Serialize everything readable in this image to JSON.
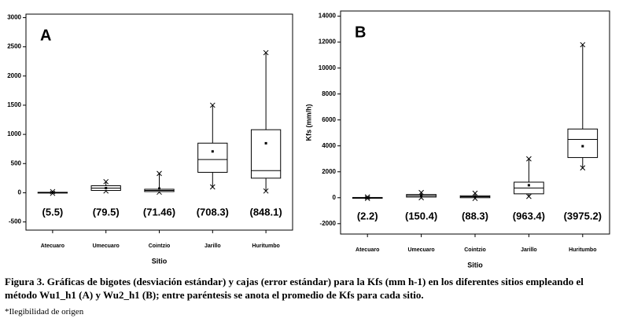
{
  "chart_data": [
    {
      "type": "box",
      "panel_label": "A",
      "x_label": "Sitio",
      "categories": [
        "Atecuaro",
        "Umecuaro",
        "Cointzio",
        "Jarillo",
        "Huritumbo"
      ],
      "min": [
        -10,
        30,
        10,
        100,
        30
      ],
      "q1": [
        0,
        40,
        20,
        350,
        250
      ],
      "median": [
        3,
        80,
        40,
        570,
        380
      ],
      "q3": [
        8,
        120,
        60,
        850,
        1080
      ],
      "max": [
        20,
        190,
        330,
        1500,
        2400
      ],
      "means": [
        5.5,
        79.5,
        71.46,
        708.3,
        848.1
      ],
      "value_labels": [
        "(5.5)",
        "(79.5)",
        "(71.46)",
        "(708.3)",
        "(848.1)"
      ],
      "ylim": [
        -640,
        3060
      ],
      "yticks": [
        -500,
        0,
        500,
        1000,
        1500,
        2000,
        2500,
        3000
      ],
      "color": "#000000"
    },
    {
      "type": "box",
      "panel_label": "B",
      "x_label": "Sitio",
      "y_label": "Kfs (mm/h)",
      "categories": [
        "Atecuaro",
        "Umecuaro",
        "Cointzio",
        "Jarillo",
        "Huritumbo"
      ],
      "min": [
        -50,
        0,
        -50,
        100,
        2300
      ],
      "q1": [
        -20,
        50,
        0,
        300,
        3100
      ],
      "median": [
        0,
        150,
        80,
        750,
        4500
      ],
      "q3": [
        20,
        250,
        150,
        1200,
        5300
      ],
      "max": [
        60,
        400,
        350,
        3000,
        11800
      ],
      "means": [
        2.2,
        150.4,
        88.3,
        963.4,
        3975.2
      ],
      "value_labels": [
        "(2.2)",
        "(150.4)",
        "(88.3)",
        "(963.4)",
        "(3975.2)"
      ],
      "ylim": [
        -2800,
        14400
      ],
      "yticks": [
        -2000,
        0,
        2000,
        4000,
        6000,
        8000,
        10000,
        12000,
        14000
      ],
      "color": "#000000"
    }
  ],
  "caption": "Figura 3. Gráficas de bigotes (desviación estándar) y cajas (error estándar) para la Kfs (mm h-1) en los diferentes sitios empleando el método Wu1_h1 (A) y Wu2_h1 (B); entre paréntesis se anota el promedio de Kfs para cada sitio.",
  "footnote": "*Ilegibilidad de origen"
}
